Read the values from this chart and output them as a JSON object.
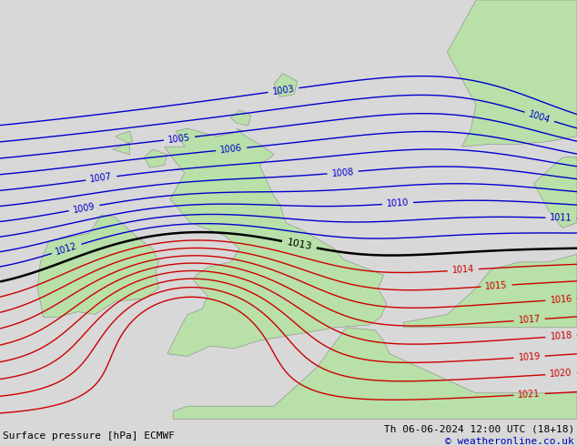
{
  "bottom_left_text": "Surface pressure [hPa] ECMWF",
  "bottom_right_text": "Th 06-06-2024 12:00 UTC (18+18)",
  "copyright_text": "© weatheronline.co.uk",
  "bg_color": "#d8d8d8",
  "land_color": "#b8e0a8",
  "sea_color": "#d8d8d8",
  "blue_isobar_color": "#0000cc",
  "red_isobar_color": "#cc0000",
  "black_isobar_color": "#000000",
  "fig_width": 6.34,
  "fig_height": 4.9,
  "dpi": 100,
  "text_color_left": "#000000",
  "text_color_right": "#000000",
  "text_color_copyright": "#0000bb",
  "font_size_bottom": 8,
  "font_size_labels": 7,
  "lon_min": -11.5,
  "lon_max": 8.5,
  "lat_min": 47.5,
  "lat_max": 63.5
}
